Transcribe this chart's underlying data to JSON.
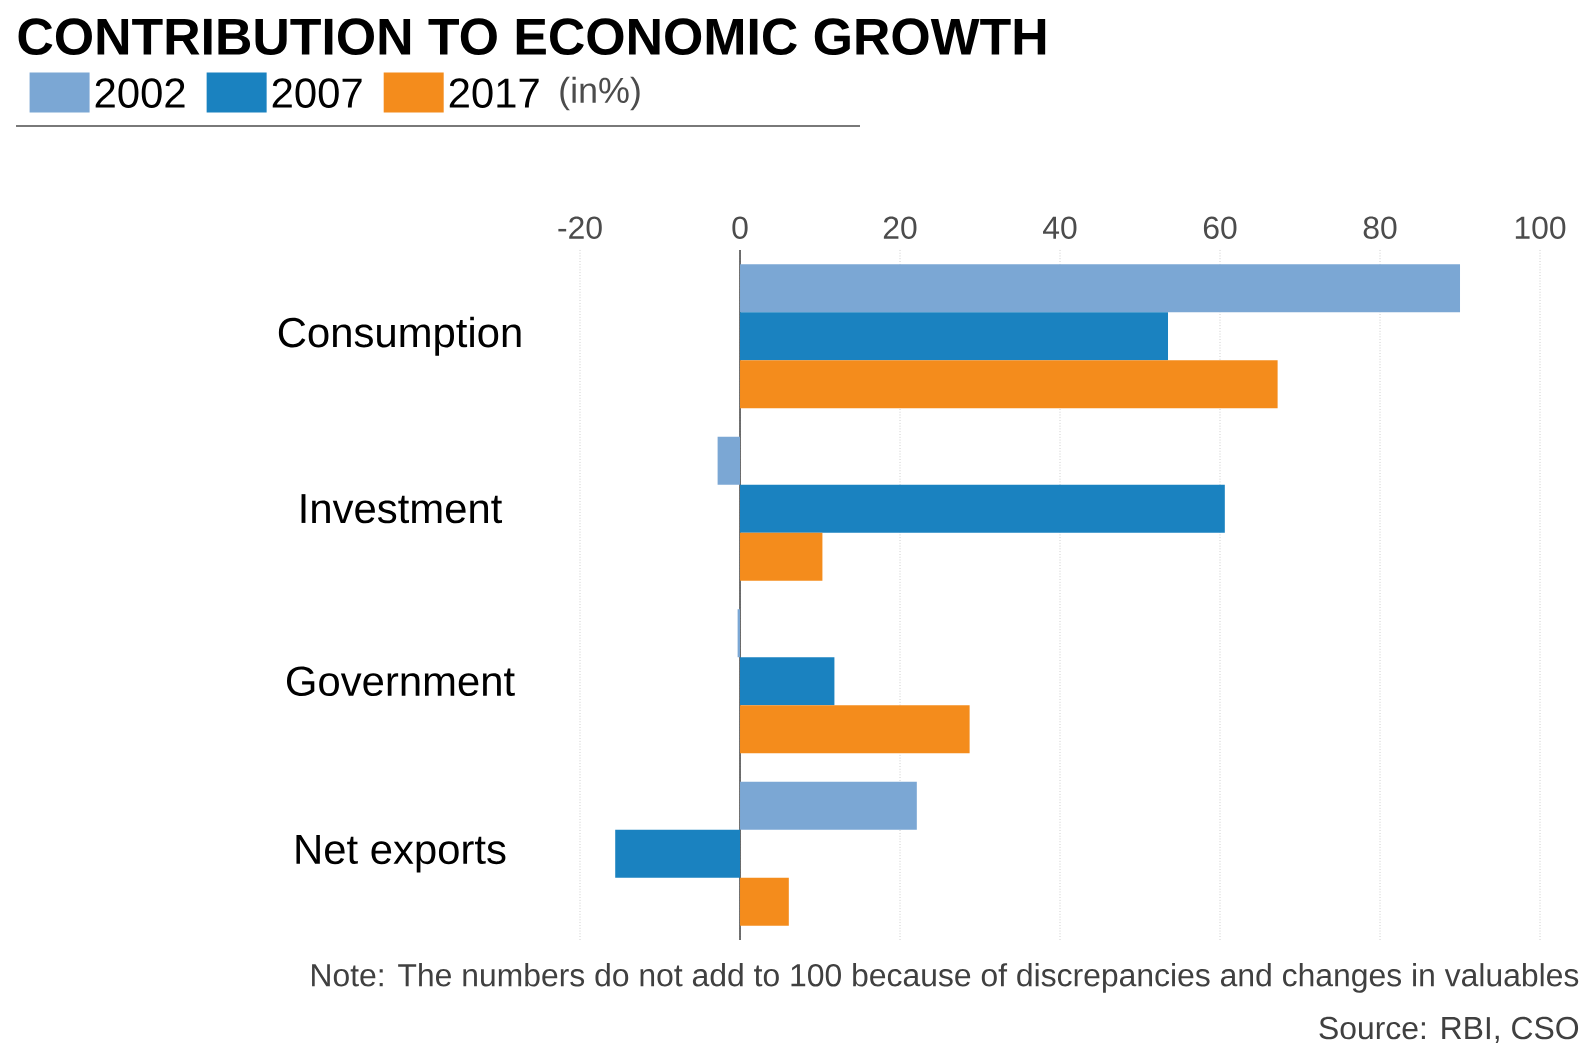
{
  "chart_data": {
    "type": "bar",
    "orientation": "horizontal",
    "title": "CONTRIBUTION TO ECONOMIC GROWTH",
    "categories": [
      "Consumption",
      "Investment",
      "Government",
      "Net exports"
    ],
    "series": [
      {
        "name": "2002",
        "color": "#7ba7d4",
        "values": [
          90,
          -2.8,
          -0.3,
          22.1
        ]
      },
      {
        "name": "2007",
        "color": "#1a82c0",
        "values": [
          53.5,
          60.6,
          11.8,
          -15.6
        ]
      },
      {
        "name": "2017",
        "color": "#f48c1c",
        "values": [
          67.2,
          10.3,
          28.7,
          6.1
        ]
      }
    ],
    "xlim": [
      -20,
      100
    ],
    "xticks": [
      -20,
      0,
      20,
      40,
      60,
      80,
      100
    ],
    "grid": "x",
    "legend": "top left",
    "annotations": [
      "(in%)",
      "Note: The numbers do not add to 100 because of discrepancies and changes in valuables",
      "Source: RBI, CSO"
    ]
  }
}
